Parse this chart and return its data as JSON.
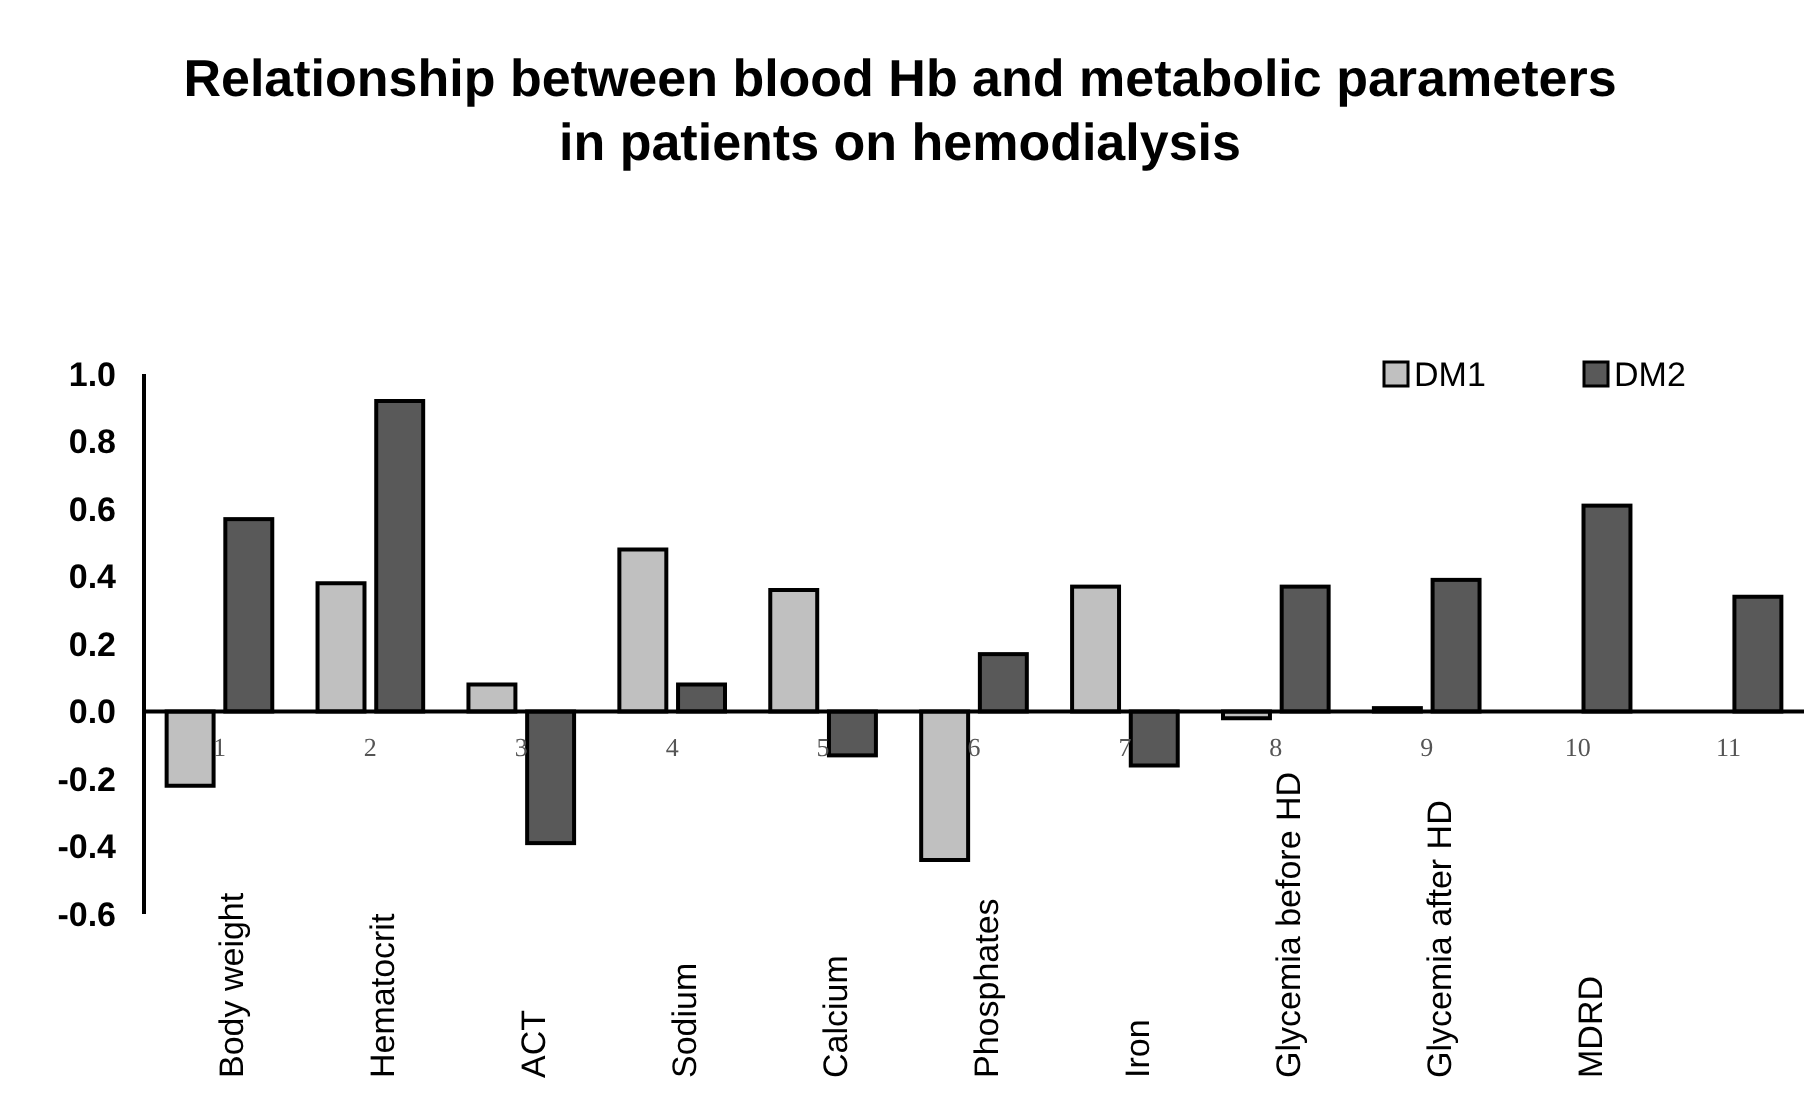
{
  "chart_data": {
    "type": "bar",
    "title": "Relationship between blood Hb and metabolic parameters in patients on hemodialysis",
    "categories": [
      "1",
      "2",
      "3",
      "4",
      "5",
      "6",
      "7",
      "8",
      "9",
      "10",
      "11"
    ],
    "series": [
      {
        "name": "DM1",
        "color": "#c0c0c0",
        "values": [
          -0.22,
          0.38,
          0.08,
          0.48,
          0.36,
          -0.44,
          0.37,
          -0.02,
          0.01,
          null,
          null
        ]
      },
      {
        "name": "DM2",
        "color": "#595959",
        "values": [
          0.57,
          0.92,
          -0.39,
          0.08,
          -0.13,
          0.17,
          -0.16,
          0.37,
          0.39,
          0.61,
          0.34
        ]
      }
    ],
    "annotations": [
      "Body weight",
      "Hematocrit",
      "ACT",
      "Sodium",
      "Calcium",
      "Phosphates",
      "Iron",
      "Glycemia before HD",
      "Glycemia after HD",
      "MDRD"
    ],
    "ylim": [
      -0.6,
      1.0
    ],
    "yticks": [
      {
        "value": -0.6,
        "label": "-0.6"
      },
      {
        "value": -0.4,
        "label": "-0.4"
      },
      {
        "value": -0.2,
        "label": "-0.2"
      },
      {
        "value": 0,
        "label": "0.0"
      },
      {
        "value": 0.2,
        "label": "0.2"
      },
      {
        "value": 0.4,
        "label": "0.4"
      },
      {
        "value": 0.6,
        "label": "0.6"
      },
      {
        "value": 0.8,
        "label": "0.8"
      },
      {
        "value": 1,
        "label": "1.0"
      }
    ],
    "grid": false,
    "legend": "top right"
  }
}
